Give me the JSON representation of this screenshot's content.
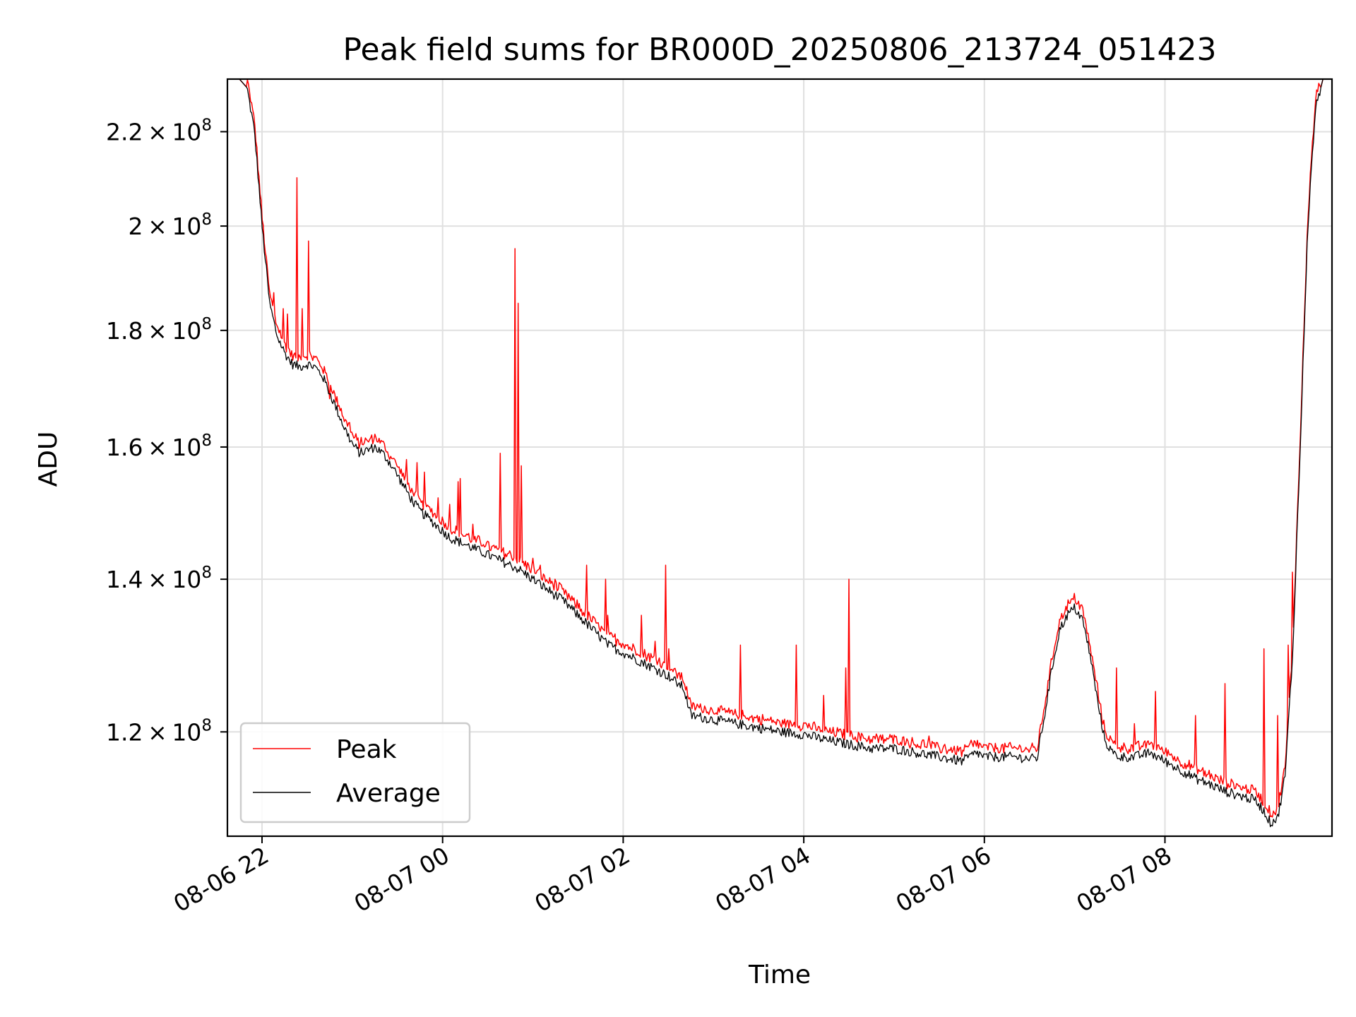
{
  "chart_data": {
    "type": "line",
    "title": "Peak field sums for BR000D_20250806_213724_051423",
    "xlabel": "Time",
    "ylabel": "ADU",
    "x_scale": "time",
    "y_scale": "log",
    "xlim": [
      "08-06 21:37",
      "08-07 09:51"
    ],
    "ylim": [
      108000000.0,
      232000000.0
    ],
    "grid": true,
    "legend_position": "lower-left",
    "x_ticks": [
      {
        "label": "08-06 22",
        "time": "08-06 22:00"
      },
      {
        "label": "08-07 00",
        "time": "08-07 00:00"
      },
      {
        "label": "08-07 02",
        "time": "08-07 02:00"
      },
      {
        "label": "08-07 04",
        "time": "08-07 04:00"
      },
      {
        "label": "08-07 06",
        "time": "08-07 06:00"
      },
      {
        "label": "08-07 08",
        "time": "08-07 08:00"
      }
    ],
    "y_ticks": [
      {
        "mantissa": "1.2",
        "exponent": "8",
        "value": 120000000.0
      },
      {
        "mantissa": "1.4",
        "exponent": "8",
        "value": 140000000.0
      },
      {
        "mantissa": "1.6",
        "exponent": "8",
        "value": 160000000.0
      },
      {
        "mantissa": "1.8",
        "exponent": "8",
        "value": 180000000.0
      },
      {
        "mantissa": "2",
        "exponent": "8",
        "value": 200000000.0
      },
      {
        "mantissa": "2.2",
        "exponent": "8",
        "value": 220000000.0
      }
    ],
    "series": [
      {
        "name": "Average",
        "color": "#000000",
        "points": [
          [
            "08-06 21:37",
            232000000.0
          ],
          [
            "08-06 21:45",
            232000000.0
          ],
          [
            "08-06 21:50",
            230000000.0
          ],
          [
            "08-06 21:55",
            220000000.0
          ],
          [
            "08-06 22:00",
            200000000.0
          ],
          [
            "08-06 22:05",
            185000000.0
          ],
          [
            "08-06 22:10",
            179000000.0
          ],
          [
            "08-06 22:15",
            176000000.0
          ],
          [
            "08-06 22:20",
            174000000.0
          ],
          [
            "08-06 22:25",
            173500000.0
          ],
          [
            "08-06 22:30",
            174000000.0
          ],
          [
            "08-06 22:35",
            173500000.0
          ],
          [
            "08-06 22:40",
            172000000.0
          ],
          [
            "08-06 22:45",
            169000000.0
          ],
          [
            "08-06 22:50",
            166000000.0
          ],
          [
            "08-06 22:55",
            163000000.0
          ],
          [
            "08-06 23:00",
            160500000.0
          ],
          [
            "08-06 23:05",
            159000000.0
          ],
          [
            "08-06 23:10",
            159500000.0
          ],
          [
            "08-06 23:15",
            160000000.0
          ],
          [
            "08-06 23:20",
            159000000.0
          ],
          [
            "08-06 23:25",
            157500000.0
          ],
          [
            "08-06 23:30",
            155500000.0
          ],
          [
            "08-06 23:35",
            153500000.0
          ],
          [
            "08-06 23:40",
            151500000.0
          ],
          [
            "08-06 23:45",
            150000000.0
          ],
          [
            "08-06 23:50",
            149000000.0
          ],
          [
            "08-06 23:55",
            148000000.0
          ],
          [
            "08-07 00:00",
            147000000.0
          ],
          [
            "08-07 00:05",
            146000000.0
          ],
          [
            "08-07 00:10",
            145500000.0
          ],
          [
            "08-07 00:15",
            145000000.0
          ],
          [
            "08-07 00:20",
            144500000.0
          ],
          [
            "08-07 00:30",
            143500000.0
          ],
          [
            "08-07 00:40",
            142500000.0
          ],
          [
            "08-07 00:50",
            141500000.0
          ],
          [
            "08-07 01:00",
            140000000.0
          ],
          [
            "08-07 01:10",
            138500000.0
          ],
          [
            "08-07 01:20",
            137000000.0
          ],
          [
            "08-07 01:30",
            135000000.0
          ],
          [
            "08-07 01:40",
            133000000.0
          ],
          [
            "08-07 01:50",
            131000000.0
          ],
          [
            "08-07 02:00",
            130000000.0
          ],
          [
            "08-07 02:10",
            129000000.0
          ],
          [
            "08-07 02:20",
            128000000.0
          ],
          [
            "08-07 02:30",
            127000000.0
          ],
          [
            "08-07 02:35",
            126200000.0
          ],
          [
            "08-07 02:40",
            125500000.0
          ],
          [
            "08-07 02:45",
            122000000.0
          ],
          [
            "08-07 03:00",
            121500000.0
          ],
          [
            "08-07 03:15",
            121000000.0
          ],
          [
            "08-07 03:30",
            120500000.0
          ],
          [
            "08-07 03:45",
            120000000.0
          ],
          [
            "08-07 04:00",
            119700000.0
          ],
          [
            "08-07 04:15",
            119000000.0
          ],
          [
            "08-07 04:30",
            118500000.0
          ],
          [
            "08-07 04:45",
            118000000.0
          ],
          [
            "08-07 05:00",
            118000000.0
          ],
          [
            "08-07 05:15",
            117500000.0
          ],
          [
            "08-07 05:30",
            117000000.0
          ],
          [
            "08-07 05:45",
            116500000.0
          ],
          [
            "08-07 05:55",
            117500000.0
          ],
          [
            "08-07 06:00",
            117000000.0
          ],
          [
            "08-07 06:10",
            117000000.0
          ],
          [
            "08-07 06:20",
            117000000.0
          ],
          [
            "08-07 06:30",
            116800000.0
          ],
          [
            "08-07 06:35",
            116800000.0
          ],
          [
            "08-07 06:40",
            122000000.0
          ],
          [
            "08-07 06:45",
            128000000.0
          ],
          [
            "08-07 06:50",
            133000000.0
          ],
          [
            "08-07 06:55",
            135000000.0
          ],
          [
            "08-07 07:00",
            136000000.0
          ],
          [
            "08-07 07:05",
            134500000.0
          ],
          [
            "08-07 07:10",
            130000000.0
          ],
          [
            "08-07 07:15",
            124000000.0
          ],
          [
            "08-07 07:20",
            119000000.0
          ],
          [
            "08-07 07:25",
            117500000.0
          ],
          [
            "08-07 07:30",
            117000000.0
          ],
          [
            "08-07 07:40",
            117000000.0
          ],
          [
            "08-07 07:50",
            117500000.0
          ],
          [
            "08-07 08:00",
            116500000.0
          ],
          [
            "08-07 08:10",
            115500000.0
          ],
          [
            "08-07 08:20",
            114500000.0
          ],
          [
            "08-07 08:30",
            113800000.0
          ],
          [
            "08-07 08:40",
            113000000.0
          ],
          [
            "08-07 08:50",
            112500000.0
          ],
          [
            "08-07 09:00",
            112000000.0
          ],
          [
            "08-07 09:05",
            111000000.0
          ],
          [
            "08-07 09:10",
            109500000.0
          ],
          [
            "08-07 09:15",
            110000000.0
          ],
          [
            "08-07 09:20",
            115000000.0
          ],
          [
            "08-07 09:25",
            130000000.0
          ],
          [
            "08-07 09:30",
            160000000.0
          ],
          [
            "08-07 09:35",
            200000000.0
          ],
          [
            "08-07 09:40",
            225000000.0
          ],
          [
            "08-07 09:45",
            232000000.0
          ],
          [
            "08-07 09:51",
            232000000.0
          ]
        ]
      },
      {
        "name": "Peak",
        "color": "#ff0000",
        "offset_ratio": 1.008,
        "spikes": [
          [
            "08-06 22:08",
            187000000.0
          ],
          [
            "08-06 22:14",
            184000000.0
          ],
          [
            "08-06 22:17",
            183000000.0
          ],
          [
            "08-06 22:23",
            210000000.0
          ],
          [
            "08-06 22:27",
            184000000.0
          ],
          [
            "08-06 22:31",
            197000000.0
          ],
          [
            "08-06 22:45",
            168000000.0
          ],
          [
            "08-06 22:58",
            164000000.0
          ],
          [
            "08-06 23:10",
            161000000.0
          ],
          [
            "08-06 23:25",
            158000000.0
          ],
          [
            "08-06 23:36",
            158000000.0
          ],
          [
            "08-06 23:43",
            157500000.0
          ],
          [
            "08-06 23:48",
            156000000.0
          ],
          [
            "08-06 23:57",
            152000000.0
          ],
          [
            "08-07 00:05",
            151000000.0
          ],
          [
            "08-07 00:10",
            154500000.0
          ],
          [
            "08-07 00:12",
            155000000.0
          ],
          [
            "08-07 00:20",
            148000000.0
          ],
          [
            "08-07 00:35",
            144500000.0
          ],
          [
            "08-07 00:38",
            159000000.0
          ],
          [
            "08-07 00:48",
            195500000.0
          ],
          [
            "08-07 00:50",
            185000000.0
          ],
          [
            "08-07 00:52",
            157000000.0
          ],
          [
            "08-07 01:00",
            143000000.0
          ],
          [
            "08-07 01:05",
            142000000.0
          ],
          [
            "08-07 01:15",
            140000000.0
          ],
          [
            "08-07 01:25",
            137000000.0
          ],
          [
            "08-07 01:36",
            142000000.0
          ],
          [
            "08-07 01:48",
            140000000.0
          ],
          [
            "08-07 01:50",
            135000000.0
          ],
          [
            "08-07 02:12",
            135000000.0
          ],
          [
            "08-07 02:21",
            131500000.0
          ],
          [
            "08-07 02:30",
            130500000.0
          ],
          [
            "08-07 02:28",
            142000000.0
          ],
          [
            "08-07 03:18",
            131000000.0
          ],
          [
            "08-07 03:55",
            131000000.0
          ],
          [
            "08-07 04:13",
            124500000.0
          ],
          [
            "08-07 04:28",
            128000000.0
          ],
          [
            "08-07 04:30",
            140000000.0
          ],
          [
            "08-07 04:52",
            119000000.0
          ],
          [
            "08-07 05:23",
            119500000.0
          ],
          [
            "08-07 05:34",
            118500000.0
          ],
          [
            "08-07 05:51",
            119000000.0
          ],
          [
            "08-07 07:15",
            126000000.0
          ],
          [
            "08-07 07:28",
            128000000.0
          ],
          [
            "08-07 07:40",
            121000000.0
          ],
          [
            "08-07 07:54",
            125000000.0
          ],
          [
            "08-07 08:20",
            122000000.0
          ],
          [
            "08-07 08:40",
            126000000.0
          ],
          [
            "08-07 09:06",
            130500000.0
          ],
          [
            "08-07 09:15",
            122000000.0
          ],
          [
            "08-07 09:22",
            131000000.0
          ],
          [
            "08-07 09:25",
            141000000.0
          ]
        ]
      }
    ]
  }
}
